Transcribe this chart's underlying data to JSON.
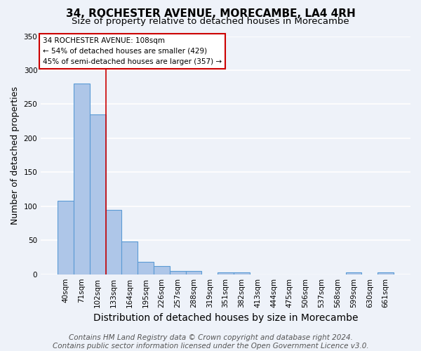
{
  "title": "34, ROCHESTER AVENUE, MORECAMBE, LA4 4RH",
  "subtitle": "Size of property relative to detached houses in Morecambe",
  "xlabel": "Distribution of detached houses by size in Morecambe",
  "ylabel": "Number of detached properties",
  "categories": [
    "40sqm",
    "71sqm",
    "102sqm",
    "133sqm",
    "164sqm",
    "195sqm",
    "226sqm",
    "257sqm",
    "288sqm",
    "319sqm",
    "351sqm",
    "382sqm",
    "413sqm",
    "444sqm",
    "475sqm",
    "506sqm",
    "537sqm",
    "568sqm",
    "599sqm",
    "630sqm",
    "661sqm"
  ],
  "values": [
    108,
    280,
    235,
    95,
    48,
    18,
    12,
    5,
    5,
    0,
    3,
    3,
    0,
    0,
    0,
    0,
    0,
    0,
    3,
    0,
    3
  ],
  "bar_color": "#aec6e8",
  "bar_edge_color": "#5b9bd5",
  "bar_linewidth": 0.8,
  "annotation_lines": [
    "34 ROCHESTER AVENUE: 108sqm",
    "← 54% of detached houses are smaller (429)",
    "45% of semi-detached houses are larger (357) →"
  ],
  "annotation_box_color": "#ffffff",
  "annotation_box_edge_color": "#cc0000",
  "vline_color": "#cc0000",
  "vline_linewidth": 1.2,
  "vline_x": 2.5,
  "ylim": [
    0,
    350
  ],
  "yticks": [
    0,
    50,
    100,
    150,
    200,
    250,
    300,
    350
  ],
  "footer_line1": "Contains HM Land Registry data © Crown copyright and database right 2024.",
  "footer_line2": "Contains public sector information licensed under the Open Government Licence v3.0.",
  "background_color": "#eef2f9",
  "grid_color": "#ffffff",
  "title_fontsize": 11,
  "subtitle_fontsize": 9.5,
  "xlabel_fontsize": 10,
  "ylabel_fontsize": 9,
  "tick_fontsize": 7.5,
  "annotation_fontsize": 7.5,
  "footer_fontsize": 7.5
}
